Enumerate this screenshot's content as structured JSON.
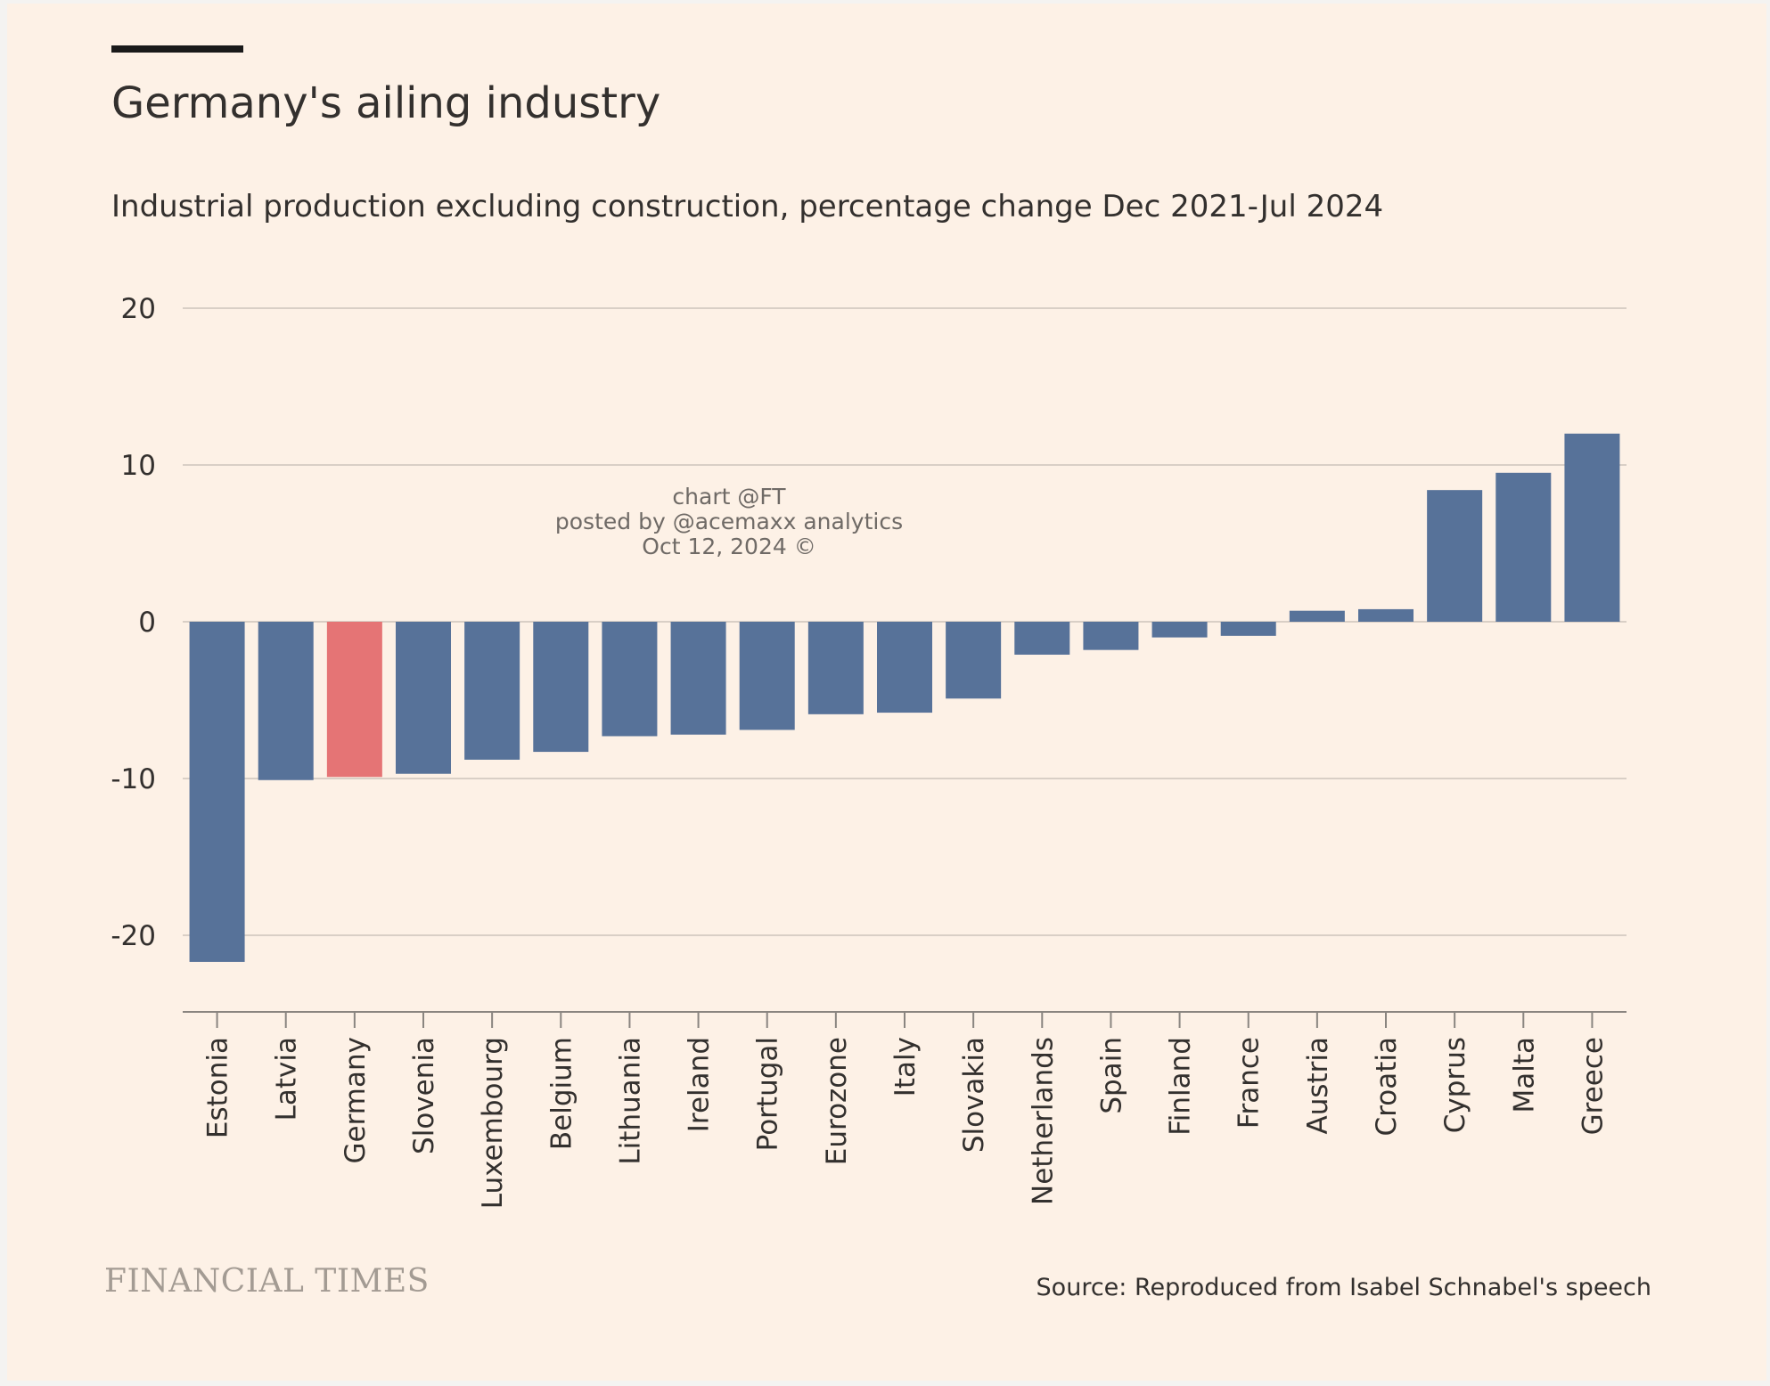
{
  "chart_data": {
    "type": "bar",
    "title": "Germany's ailing industry",
    "subtitle": "Industrial production excluding construction, percentage change Dec 2021-Jul 2024",
    "categories": [
      "Estonia",
      "Latvia",
      "Germany",
      "Slovenia",
      "Luxembourg",
      "Belgium",
      "Lithuania",
      "Ireland",
      "Portugal",
      "Eurozone",
      "Italy",
      "Slovakia",
      "Netherlands",
      "Spain",
      "Finland",
      "France",
      "Austria",
      "Croatia",
      "Cyprus",
      "Malta",
      "Greece"
    ],
    "values": [
      -21.7,
      -10.1,
      -9.9,
      -9.7,
      -8.8,
      -8.3,
      -7.3,
      -7.2,
      -6.9,
      -5.9,
      -5.8,
      -4.9,
      -2.1,
      -1.8,
      -1.0,
      -0.9,
      0.7,
      0.8,
      8.4,
      9.5,
      12.0
    ],
    "highlight": "Germany",
    "colors": {
      "default": "#577299",
      "highlight": "#e57475"
    },
    "ylim": [
      -25,
      20
    ],
    "yticks": [
      20,
      10,
      0,
      -10,
      -20
    ],
    "grid": true,
    "legend": "none"
  },
  "watermark": [
    "chart @FT",
    "posted by @acemaxx analytics",
    "Oct 12, 2024 ©"
  ],
  "footer": {
    "logo": "FINANCIAL TIMES",
    "source": "Source: Reproduced from Isabel Schnabel's speech"
  }
}
